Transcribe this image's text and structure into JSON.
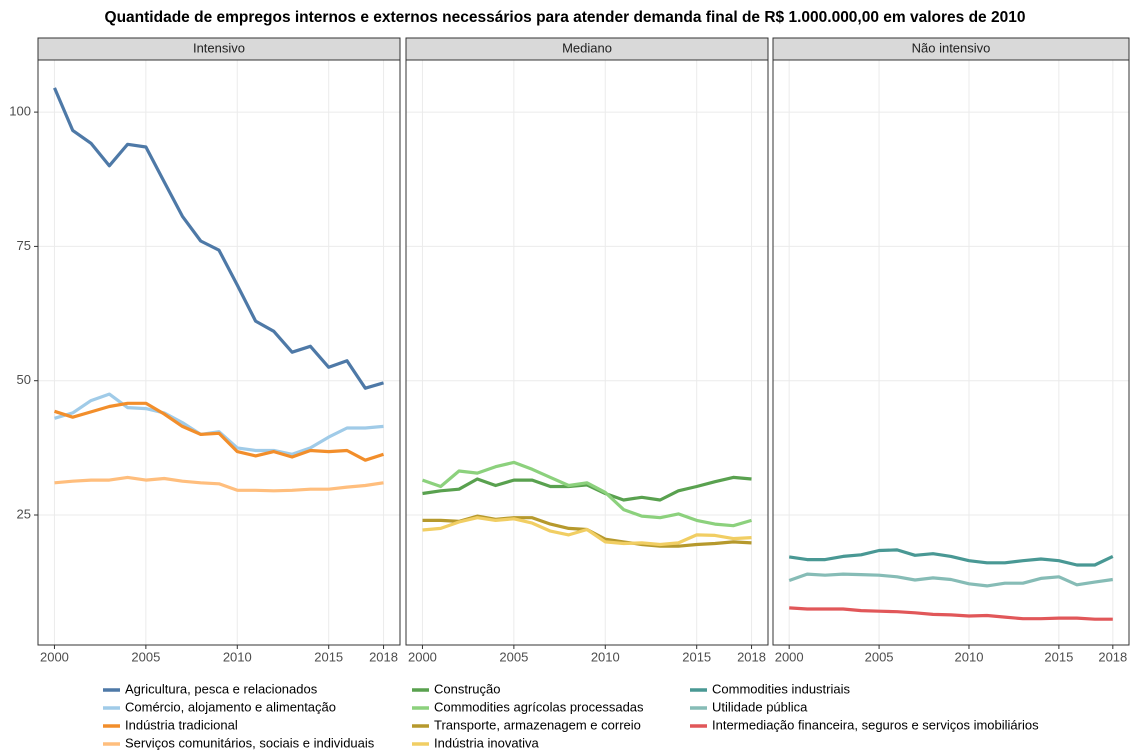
{
  "chart_data": {
    "type": "line",
    "title": "Quantidade de empregos internos e externos necessários para atender demanda final de R$ 1.000.000,00 em valores de 2010",
    "x": [
      2000,
      2001,
      2002,
      2003,
      2004,
      2005,
      2006,
      2007,
      2008,
      2009,
      2010,
      2011,
      2012,
      2013,
      2014,
      2015,
      2016,
      2017,
      2018
    ],
    "xlim": [
      1999.1,
      2018.9
    ],
    "xticks": [
      2000,
      2005,
      2010,
      2015,
      2018
    ],
    "ylim": [
      0.8,
      109.7
    ],
    "yticks": [
      25,
      50,
      75,
      100
    ],
    "grid": true,
    "legend": "bottom",
    "facets": [
      {
        "name": "Intensivo",
        "series": [
          {
            "name": "Agricultura, pesca e relacionados",
            "color": "#4e79a7",
            "values": [
              104.5,
              96.6,
              94.2,
              90,
              94,
              93.5,
              87,
              80.6,
              76,
              74.3,
              67.8,
              61.1,
              59.2,
              55.3,
              56.4,
              52.5,
              53.7,
              48.6,
              49.6
            ]
          },
          {
            "name": "Comércio, alojamento e alimentação",
            "color": "#a0cbe8",
            "values": [
              43,
              44,
              46.3,
              47.5,
              45,
              44.8,
              44,
              42.2,
              40,
              40.5,
              37.5,
              37,
              37,
              36.3,
              37.5,
              39.5,
              41.2,
              41.2,
              41.5
            ]
          },
          {
            "name": "Indústria tradicional",
            "color": "#f28e2b",
            "values": [
              44.3,
              43.2,
              44.2,
              45.2,
              45.8,
              45.8,
              43.8,
              41.5,
              40,
              40.2,
              36.8,
              36,
              36.8,
              35.8,
              37,
              36.8,
              37,
              35.2,
              36.3
            ]
          },
          {
            "name": "Serviços comunitários, sociais e individuais",
            "color": "#ffbe7d",
            "values": [
              31,
              31.3,
              31.5,
              31.5,
              32,
              31.5,
              31.8,
              31.3,
              31,
              30.8,
              29.6,
              29.6,
              29.5,
              29.6,
              29.8,
              29.8,
              30.2,
              30.5,
              31
            ]
          }
        ]
      },
      {
        "name": "Mediano",
        "series": [
          {
            "name": "Construção",
            "color": "#59a14f",
            "values": [
              29,
              29.5,
              29.8,
              31.7,
              30.5,
              31.5,
              31.5,
              30.3,
              30.3,
              30.6,
              29,
              27.8,
              28.3,
              27.8,
              29.5,
              30.3,
              31.2,
              32,
              31.7
            ]
          },
          {
            "name": "Commodities agrícolas processadas",
            "color": "#8cd17d",
            "values": [
              31.5,
              30.3,
              33.2,
              32.8,
              34,
              34.8,
              33.5,
              32,
              30.5,
              31,
              29.2,
              26,
              24.8,
              24.5,
              25.2,
              24,
              23.3,
              23,
              24
            ]
          },
          {
            "name": "Transporte, armazenagem e correio",
            "color": "#b6992d",
            "values": [
              24,
              24,
              23.8,
              24.8,
              24.2,
              24.5,
              24.5,
              23.3,
              22.5,
              22.3,
              20.5,
              20,
              19.5,
              19.2,
              19.2,
              19.5,
              19.7,
              20,
              19.8
            ]
          },
          {
            "name": "Indústria inovativa",
            "color": "#f1ce63",
            "values": [
              22.2,
              22.5,
              23.7,
              24.5,
              24,
              24.3,
              23.5,
              22,
              21.3,
              22.3,
              20,
              19.7,
              19.8,
              19.5,
              19.8,
              21.3,
              21.2,
              20.6,
              20.8
            ]
          }
        ]
      },
      {
        "name": "Não intensivo",
        "series": [
          {
            "name": "Commodities industriais",
            "color": "#499894",
            "values": [
              17.2,
              16.7,
              16.7,
              17.3,
              17.6,
              18.4,
              18.5,
              17.5,
              17.8,
              17.3,
              16.5,
              16.1,
              16.1,
              16.5,
              16.8,
              16.5,
              15.7,
              15.7,
              17.3
            ]
          },
          {
            "name": "Utilidade pública",
            "color": "#86bcb6",
            "values": [
              12.8,
              14,
              13.8,
              14,
              13.9,
              13.8,
              13.5,
              12.9,
              13.3,
              13,
              12.2,
              11.8,
              12.3,
              12.3,
              13.2,
              13.5,
              12,
              12.5,
              13
            ]
          },
          {
            "name": "Intermediação financeira, seguros e serviços imobiliários",
            "color": "#e15759",
            "values": [
              7.7,
              7.5,
              7.5,
              7.5,
              7.2,
              7.1,
              7,
              6.8,
              6.5,
              6.4,
              6.2,
              6.3,
              6,
              5.7,
              5.7,
              5.8,
              5.8,
              5.6,
              5.6
            ]
          }
        ]
      }
    ]
  }
}
